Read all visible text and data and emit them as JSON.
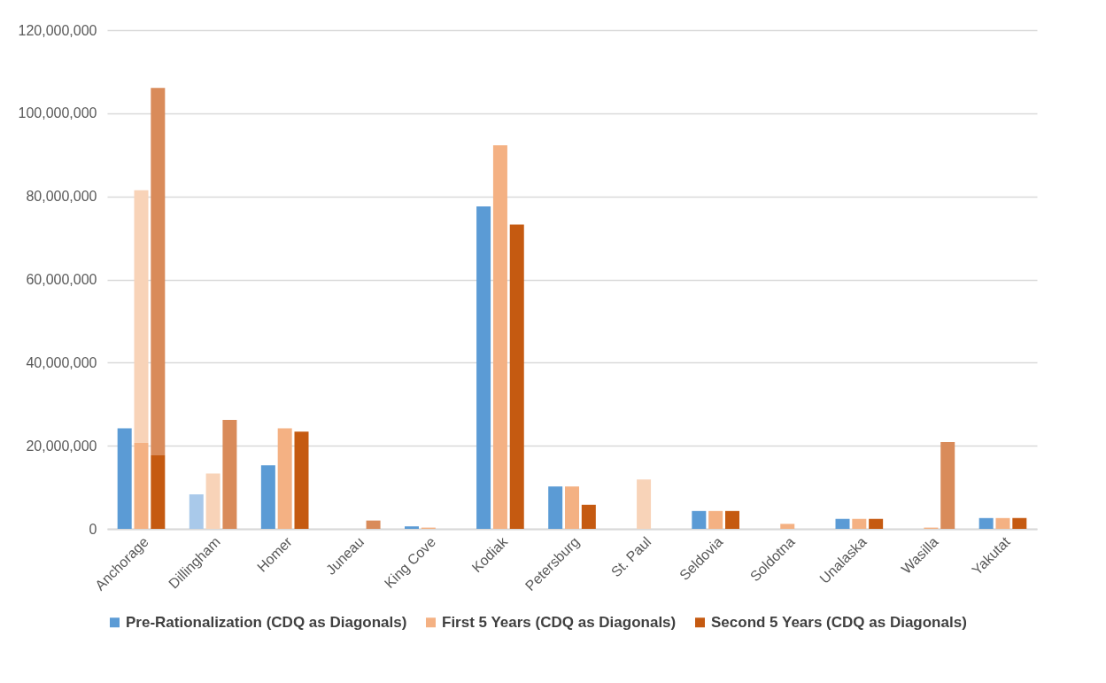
{
  "chart_data": {
    "type": "bar",
    "categories": [
      "Anchorage",
      "Dillingham",
      "Homer",
      "Juneau",
      "King Cove",
      "Kodiak",
      "Petersburg",
      "St. Paul",
      "Seldovia",
      "Soldotna",
      "Unalaska",
      "Wasilla",
      "Yakutat"
    ],
    "series": [
      {
        "name": "Pre-Rationalization (CDQ as Diagonals)",
        "color": "#5b9bd5",
        "values": [
          24200000,
          0,
          15300000,
          0,
          600000,
          77600000,
          10200000,
          0,
          4300000,
          0,
          2400000,
          0,
          2600000
        ]
      },
      {
        "color": "#a9c9ea",
        "values": [
          null,
          8300000,
          null,
          null,
          null,
          null,
          null,
          null,
          null,
          null,
          null,
          null,
          null
        ],
        "base": [
          null,
          0,
          null,
          null,
          null,
          null,
          null,
          null,
          null,
          null,
          null,
          null,
          null
        ]
      },
      {
        "name": "First 5 Years (CDQ as Diagonals)",
        "color": "#f4b183",
        "values": [
          20700000,
          0,
          24200000,
          0,
          300000,
          92300000,
          10200000,
          0,
          4300000,
          1200000,
          2400000,
          300000,
          2600000
        ]
      },
      {
        "color": "#f8d3b8",
        "values": [
          60800000,
          13300000,
          null,
          null,
          null,
          null,
          null,
          11900000,
          null,
          null,
          null,
          null,
          null
        ],
        "base": [
          20700000,
          0,
          null,
          null,
          null,
          null,
          null,
          0,
          null,
          null,
          null,
          null,
          null
        ]
      },
      {
        "name": "Second 5 Years (CDQ as Diagonals)",
        "color": "#c55a11",
        "values": [
          17700000,
          0,
          23400000,
          0,
          0,
          73200000,
          5800000,
          0,
          4300000,
          0,
          2400000,
          0,
          2600000
        ]
      },
      {
        "color": "#d98b5a",
        "values": [
          88400000,
          26200000,
          null,
          2000000,
          null,
          null,
          null,
          null,
          null,
          null,
          null,
          20900000,
          null
        ],
        "base": [
          17700000,
          0,
          null,
          0,
          null,
          null,
          null,
          null,
          null,
          null,
          null,
          0,
          null
        ]
      }
    ],
    "ylim": [
      0,
      120000000
    ],
    "yticks": [
      0,
      {
        "value": 20000000,
        "label": "20,000,000"
      },
      {
        "value": 40000000,
        "label": "40,000,000"
      },
      {
        "value": 60000000,
        "label": "60,000,000"
      },
      {
        "value": 80000000,
        "label": "80,000,000"
      },
      {
        "value": 100000000,
        "label": "100,000,000"
      },
      {
        "value": 120000000,
        "label": "120,000,000"
      }
    ],
    "grid": "y",
    "legend": "bottom"
  }
}
